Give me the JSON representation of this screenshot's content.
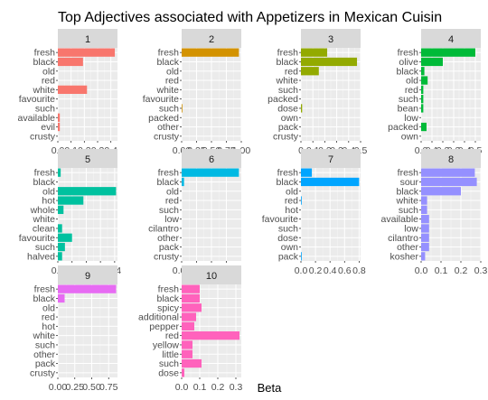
{
  "chart_data": {
    "type": "bar",
    "title": "Top Adjectives associated with Appetizers in Mexican Cuisin",
    "xlabel": "Beta",
    "ylabel": "",
    "grid": true,
    "legend": "none",
    "panels": [
      {
        "label": "1",
        "color": "#F8766D",
        "categories": [
          "fresh",
          "black",
          "old",
          "red",
          "white",
          "favourite",
          "such",
          "available",
          "evil",
          "crusty"
        ],
        "values": [
          0.43,
          0.19,
          0.0,
          0.0,
          0.22,
          0.0,
          0.0,
          0.015,
          0.015,
          0.0
        ],
        "xlim": [
          0,
          0.45
        ],
        "xticks": [
          0.0,
          0.1,
          0.2,
          0.3,
          0.4
        ],
        "xtick_labels": [
          "0.0",
          "0.1",
          "0.2",
          "0.3",
          "0.4"
        ]
      },
      {
        "label": "2",
        "color": "#D39200",
        "categories": [
          "fresh",
          "black",
          "old",
          "red",
          "white",
          "favourite",
          "such",
          "packed",
          "other",
          "crusty"
        ],
        "values": [
          0.96,
          0.0,
          0.0,
          0.0,
          0.0,
          0.0,
          0.01,
          0.0,
          0.0,
          0.0
        ],
        "xlim": [
          0,
          1.0
        ],
        "xticks": [
          0.0,
          0.25,
          0.5,
          0.75,
          1.0
        ],
        "xtick_labels": [
          "0.00",
          "0.25",
          "0.50",
          "0.75",
          "1.00"
        ]
      },
      {
        "label": "3",
        "color": "#93AA00",
        "categories": [
          "fresh",
          "black",
          "red",
          "white",
          "such",
          "packed",
          "dose",
          "own",
          "pack",
          "crusty"
        ],
        "values": [
          0.22,
          0.47,
          0.15,
          0.0,
          0.0,
          0.0,
          0.01,
          0.0,
          0.0,
          0.0
        ],
        "xlim": [
          0,
          0.5
        ],
        "xticks": [
          0.0,
          0.1,
          0.2,
          0.3,
          0.4,
          0.5
        ],
        "xtick_labels": [
          "0",
          "0.1",
          "0.2",
          "0.3",
          "0.4",
          "0.5"
        ]
      },
      {
        "label": "4",
        "color": "#00BA38",
        "categories": [
          "fresh",
          "olive",
          "black",
          "old",
          "red",
          "such",
          "bean",
          "low",
          "packed",
          "own"
        ],
        "values": [
          0.5,
          0.2,
          0.03,
          0.06,
          0.02,
          0.02,
          0.02,
          0.0,
          0.05,
          0.0
        ],
        "xlim": [
          0,
          0.55
        ],
        "xticks": [
          0.0,
          0.1,
          0.2,
          0.3,
          0.4,
          0.5
        ],
        "xtick_labels": [
          "0.0",
          "0.1",
          "0.2",
          "0.3",
          "0.4",
          "0.5"
        ]
      },
      {
        "label": "5",
        "color": "#00C19F",
        "categories": [
          "fresh",
          "black",
          "old",
          "hot",
          "whole",
          "white",
          "clean",
          "favourite",
          "such",
          "halved"
        ],
        "values": [
          0.02,
          0.0,
          0.41,
          0.18,
          0.04,
          0.0,
          0.03,
          0.1,
          0.05,
          0.03
        ],
        "xlim": [
          0,
          0.42
        ],
        "xticks": [
          0.0,
          0.1,
          0.2,
          0.3,
          0.4
        ],
        "xtick_labels": [
          "0.0",
          "0.1",
          "0.2",
          "0.3",
          "0.4"
        ]
      },
      {
        "label": "6",
        "color": "#00B9E3",
        "categories": [
          "fresh",
          "black",
          "old",
          "red",
          "such",
          "low",
          "cilantro",
          "other",
          "pack",
          "crusty"
        ],
        "values": [
          0.96,
          0.04,
          0.0,
          0.0,
          0.0,
          0.0,
          0.0,
          0.0,
          0.0,
          0.0
        ],
        "xlim": [
          0,
          1.0
        ],
        "xticks": [
          0.0,
          0.25,
          0.5,
          0.75
        ],
        "xtick_labels": [
          "0.00",
          "0.25",
          "0.50",
          "0.75"
        ]
      },
      {
        "label": "7",
        "color": "#00A5FF",
        "categories": [
          "fresh",
          "black",
          "old",
          "red",
          "hot",
          "favourite",
          "such",
          "dose",
          "own",
          "pack"
        ],
        "values": [
          0.15,
          0.8,
          0.0,
          0.01,
          0.0,
          0.0,
          0.0,
          0.0,
          0.0,
          0.01
        ],
        "xlim": [
          0,
          0.82
        ],
        "xticks": [
          0.0,
          0.2,
          0.4,
          0.6,
          0.8
        ],
        "xtick_labels": [
          "0.0",
          "0.2",
          "0.4",
          "0.6",
          "0.8"
        ]
      },
      {
        "label": "8",
        "color": "#9590FF",
        "categories": [
          "fresh",
          "sour",
          "black",
          "white",
          "such",
          "available",
          "low",
          "cilantro",
          "other",
          "kosher"
        ],
        "values": [
          0.27,
          0.28,
          0.2,
          0.03,
          0.03,
          0.04,
          0.04,
          0.04,
          0.04,
          0.02
        ],
        "xlim": [
          0,
          0.3
        ],
        "xticks": [
          0.0,
          0.1,
          0.2,
          0.3
        ],
        "xtick_labels": [
          "0.0",
          "0.1",
          "0.2",
          "0.3"
        ]
      },
      {
        "label": "9",
        "color": "#E76BF3",
        "categories": [
          "fresh",
          "black",
          "old",
          "red",
          "hot",
          "white",
          "such",
          "other",
          "pack",
          "crusty"
        ],
        "values": [
          0.86,
          0.1,
          0.0,
          0.0,
          0.0,
          0.0,
          0.0,
          0.0,
          0.0,
          0.0
        ],
        "xlim": [
          0,
          0.88
        ],
        "xticks": [
          0.0,
          0.25,
          0.5,
          0.75
        ],
        "xtick_labels": [
          "0.00",
          "0.25",
          "0.50",
          "0.75"
        ]
      },
      {
        "label": "10",
        "color": "#FF62BC",
        "categories": [
          "fresh",
          "black",
          "spicy",
          "additional",
          "pepper",
          "red",
          "yellow",
          "little",
          "such",
          "dose"
        ],
        "values": [
          0.1,
          0.1,
          0.11,
          0.08,
          0.07,
          0.32,
          0.06,
          0.06,
          0.11,
          0.015
        ],
        "xlim": [
          0,
          0.33
        ],
        "xticks": [
          0.0,
          0.1,
          0.2,
          0.3
        ],
        "xtick_labels": [
          "0.0",
          "0.1",
          "0.2",
          "0.3"
        ]
      }
    ]
  }
}
